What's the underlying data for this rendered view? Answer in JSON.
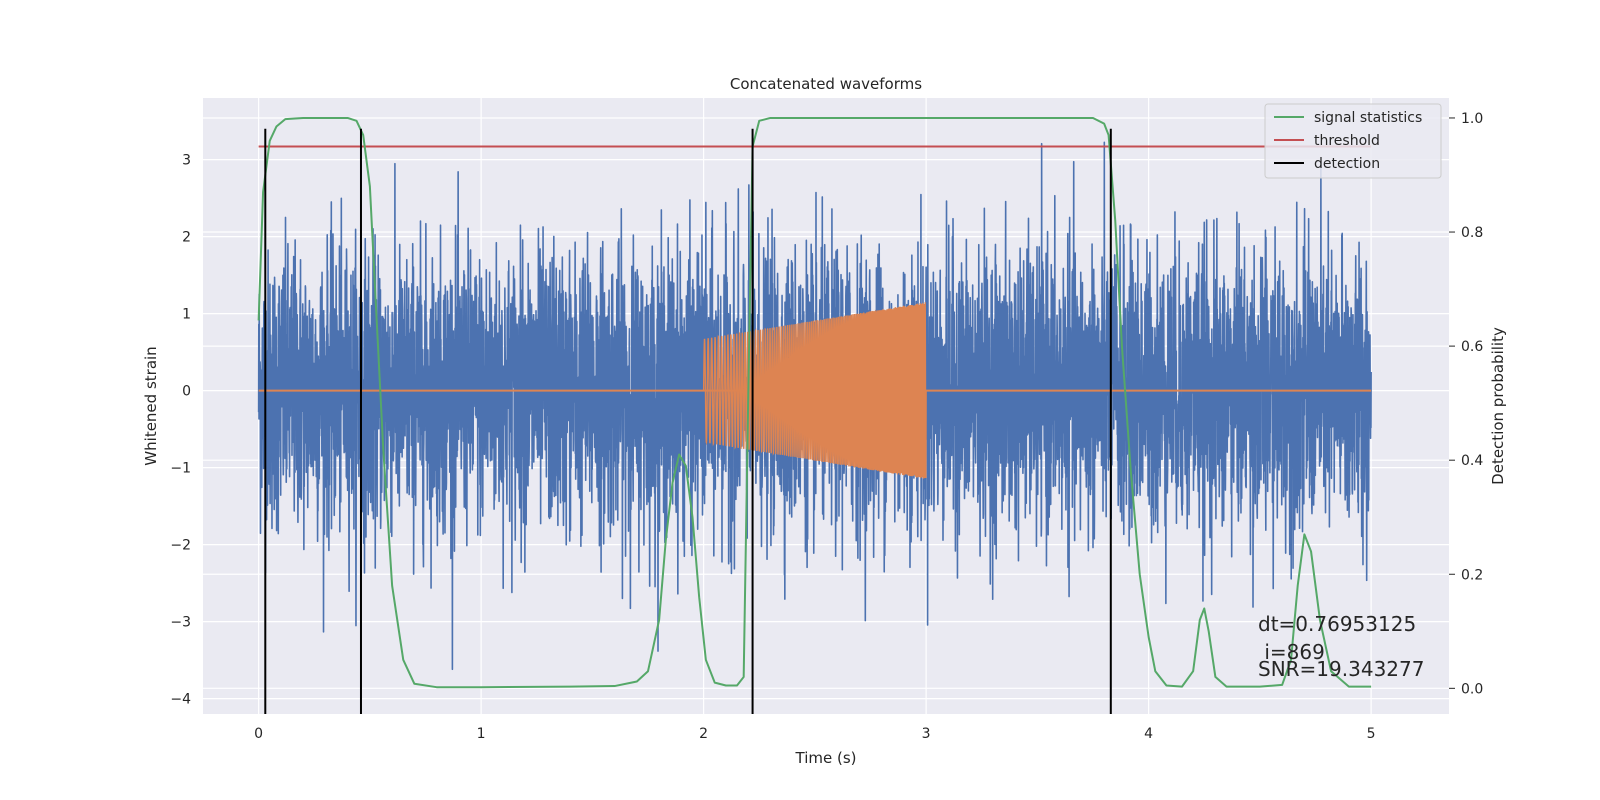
{
  "chart_data": {
    "type": "line",
    "title": "Concatenated waveforms",
    "xlabel": "Time (s)",
    "ylabel": "Whitened strain",
    "ylabel_right": "Detection probability",
    "xlim": [
      -0.25,
      5.35
    ],
    "ylim": [
      -4.2,
      3.8
    ],
    "ylim_right": [
      -0.045,
      1.035
    ],
    "x_ticks": [
      0,
      1,
      2,
      3,
      4,
      5
    ],
    "y_ticks": [
      -4,
      -3,
      -2,
      -1,
      0,
      1,
      2,
      3
    ],
    "y_ticks_right": [
      0.0,
      0.2,
      0.4,
      0.6,
      0.8,
      1.0
    ],
    "y_tick_labels": [
      "−4",
      "−3",
      "−2",
      "−1",
      "0",
      "1",
      "2",
      "3"
    ],
    "y_tick_labels_right": [
      "0.0",
      "0.2",
      "0.4",
      "0.6",
      "0.8",
      "1.0"
    ],
    "x_tick_labels": [
      "0",
      "1",
      "2",
      "3",
      "4",
      "5"
    ],
    "grid": true,
    "legend_position": "top-right",
    "legend": [
      {
        "label": "signal statistics",
        "color": "#55a868"
      },
      {
        "label": "threshold",
        "color": "#c44e52"
      },
      {
        "label": "detection",
        "color": "#000000"
      }
    ],
    "colors": {
      "background": "#eaeaf2",
      "grid": "#ffffff",
      "noise": "#4c72b0",
      "injection": "#dd8452",
      "statistics": "#55a868",
      "threshold": "#c44e52",
      "detection": "#000000"
    },
    "series": [
      {
        "label": "noise",
        "kind": "noisy_strain",
        "x_range": [
          0,
          5
        ],
        "typical_amplitude": 1.1,
        "peak_max": 3.4,
        "peak_min": -3.9
      },
      {
        "label": "injection",
        "kind": "chirp",
        "x_range": [
          2.0,
          3.0
        ],
        "amplitude_start": 0.67,
        "amplitude_end": 1.15,
        "baseline": 0
      },
      {
        "label": "signal statistics",
        "axis": "right",
        "x": [
          0,
          0.02,
          0.05,
          0.08,
          0.12,
          0.2,
          0.3,
          0.4,
          0.44,
          0.47,
          0.5,
          0.53,
          0.56,
          0.6,
          0.65,
          0.7,
          0.8,
          1.0,
          1.4,
          1.6,
          1.7,
          1.75,
          1.8,
          1.83,
          1.86,
          1.89,
          1.92,
          1.95,
          1.98,
          2.01,
          2.05,
          2.1,
          2.15,
          2.18,
          2.2,
          2.22,
          2.25,
          2.3,
          2.5,
          3.0,
          3.5,
          3.75,
          3.8,
          3.82,
          3.85,
          3.88,
          3.92,
          3.96,
          4.0,
          4.03,
          4.08,
          4.15,
          4.2,
          4.23,
          4.25,
          4.27,
          4.3,
          4.35,
          4.5,
          4.6,
          4.64,
          4.67,
          4.7,
          4.73,
          4.77,
          4.82,
          4.9,
          5.0
        ],
        "y": [
          0.645,
          0.87,
          0.96,
          0.985,
          0.998,
          1.0,
          1.0,
          1.0,
          0.995,
          0.97,
          0.88,
          0.65,
          0.42,
          0.18,
          0.05,
          0.008,
          0.002,
          0.002,
          0.003,
          0.004,
          0.012,
          0.03,
          0.12,
          0.26,
          0.36,
          0.41,
          0.39,
          0.3,
          0.16,
          0.05,
          0.01,
          0.005,
          0.005,
          0.02,
          0.5,
          0.95,
          0.995,
          1.0,
          1.0,
          1.0,
          1.0,
          1.0,
          0.99,
          0.97,
          0.82,
          0.6,
          0.38,
          0.2,
          0.09,
          0.03,
          0.005,
          0.003,
          0.03,
          0.12,
          0.14,
          0.1,
          0.02,
          0.003,
          0.003,
          0.006,
          0.05,
          0.18,
          0.27,
          0.24,
          0.12,
          0.03,
          0.003,
          0.003
        ]
      },
      {
        "label": "threshold",
        "axis": "right",
        "x": [
          0,
          5
        ],
        "y": [
          0.95,
          0.95
        ]
      },
      {
        "label": "detection",
        "kind": "vertical_lines",
        "x": [
          0.03,
          0.46,
          2.22,
          3.83
        ],
        "y_range": [
          -4.2,
          3.4
        ]
      }
    ],
    "annotations": [
      {
        "text": "dt=0.76953125",
        "x": 4.5,
        "y": -3.05
      },
      {
        "text": " i=869",
        "x": 4.5,
        "y": -3.4
      },
      {
        "text": "SNR=19.343277",
        "x": 4.5,
        "y": -3.6
      }
    ]
  }
}
